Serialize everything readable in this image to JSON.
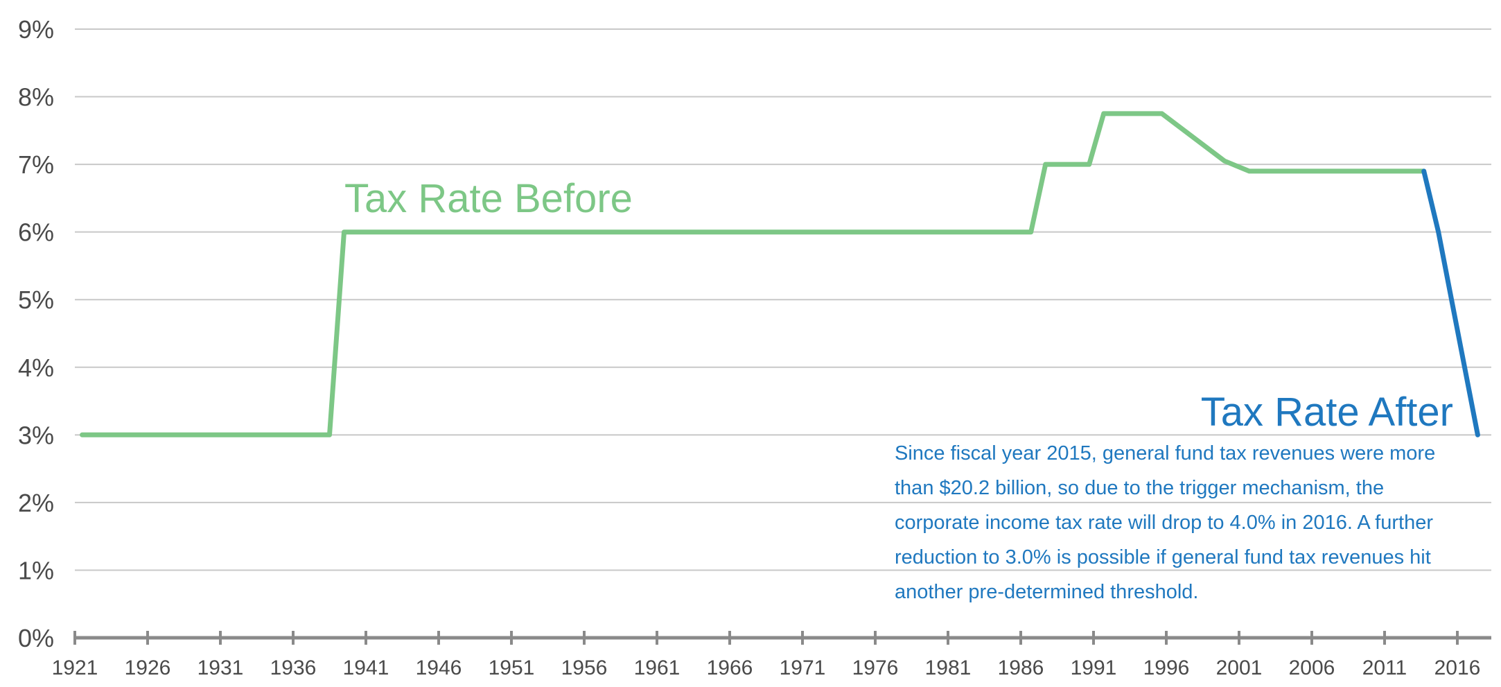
{
  "chart_data": {
    "type": "line",
    "title": "",
    "xlabel": "",
    "ylabel": "",
    "xlim": [
      1921,
      2018
    ],
    "ylim": [
      0,
      9
    ],
    "y_ticks": [
      "0%",
      "1%",
      "2%",
      "3%",
      "4%",
      "5%",
      "6%",
      "7%",
      "8%",
      "9%"
    ],
    "x_ticks": [
      "1921",
      "1926",
      "1931",
      "1936",
      "1941",
      "1946",
      "1951",
      "1956",
      "1961",
      "1966",
      "1971",
      "1976",
      "1981",
      "1986",
      "1991",
      "1996",
      "2001",
      "2006",
      "2011",
      "2016"
    ],
    "grid": true,
    "colors": {
      "before": "#7dc786",
      "after": "#1f78bf",
      "grid": "#c8c8c8",
      "axis": "#8a8a8a"
    },
    "series": [
      {
        "name": "Tax Rate Before",
        "x": [
          1921.5,
          1938.5,
          1939.5,
          1986.7,
          1987.7,
          1990.7,
          1991.7,
          1995.7,
          2000,
          2001.7,
          2013.7
        ],
        "y": [
          3,
          3,
          6,
          6,
          7,
          7,
          7.75,
          7.75,
          7.05,
          6.9,
          6.9
        ]
      },
      {
        "name": "Tax Rate After",
        "x": [
          2013.7,
          2014.7,
          2017.4
        ],
        "y": [
          6.9,
          6,
          3
        ]
      }
    ],
    "annotations": {
      "note_lines": [
        "Since fiscal year 2015, general fund tax revenues were more",
        "than $20.2 billion, so due to the trigger mechanism, the",
        "corporate income tax rate will drop to 4.0% in 2016. A further",
        "reduction to 3.0% is possible if general fund tax revenues hit",
        "another pre-determined threshold."
      ]
    }
  }
}
